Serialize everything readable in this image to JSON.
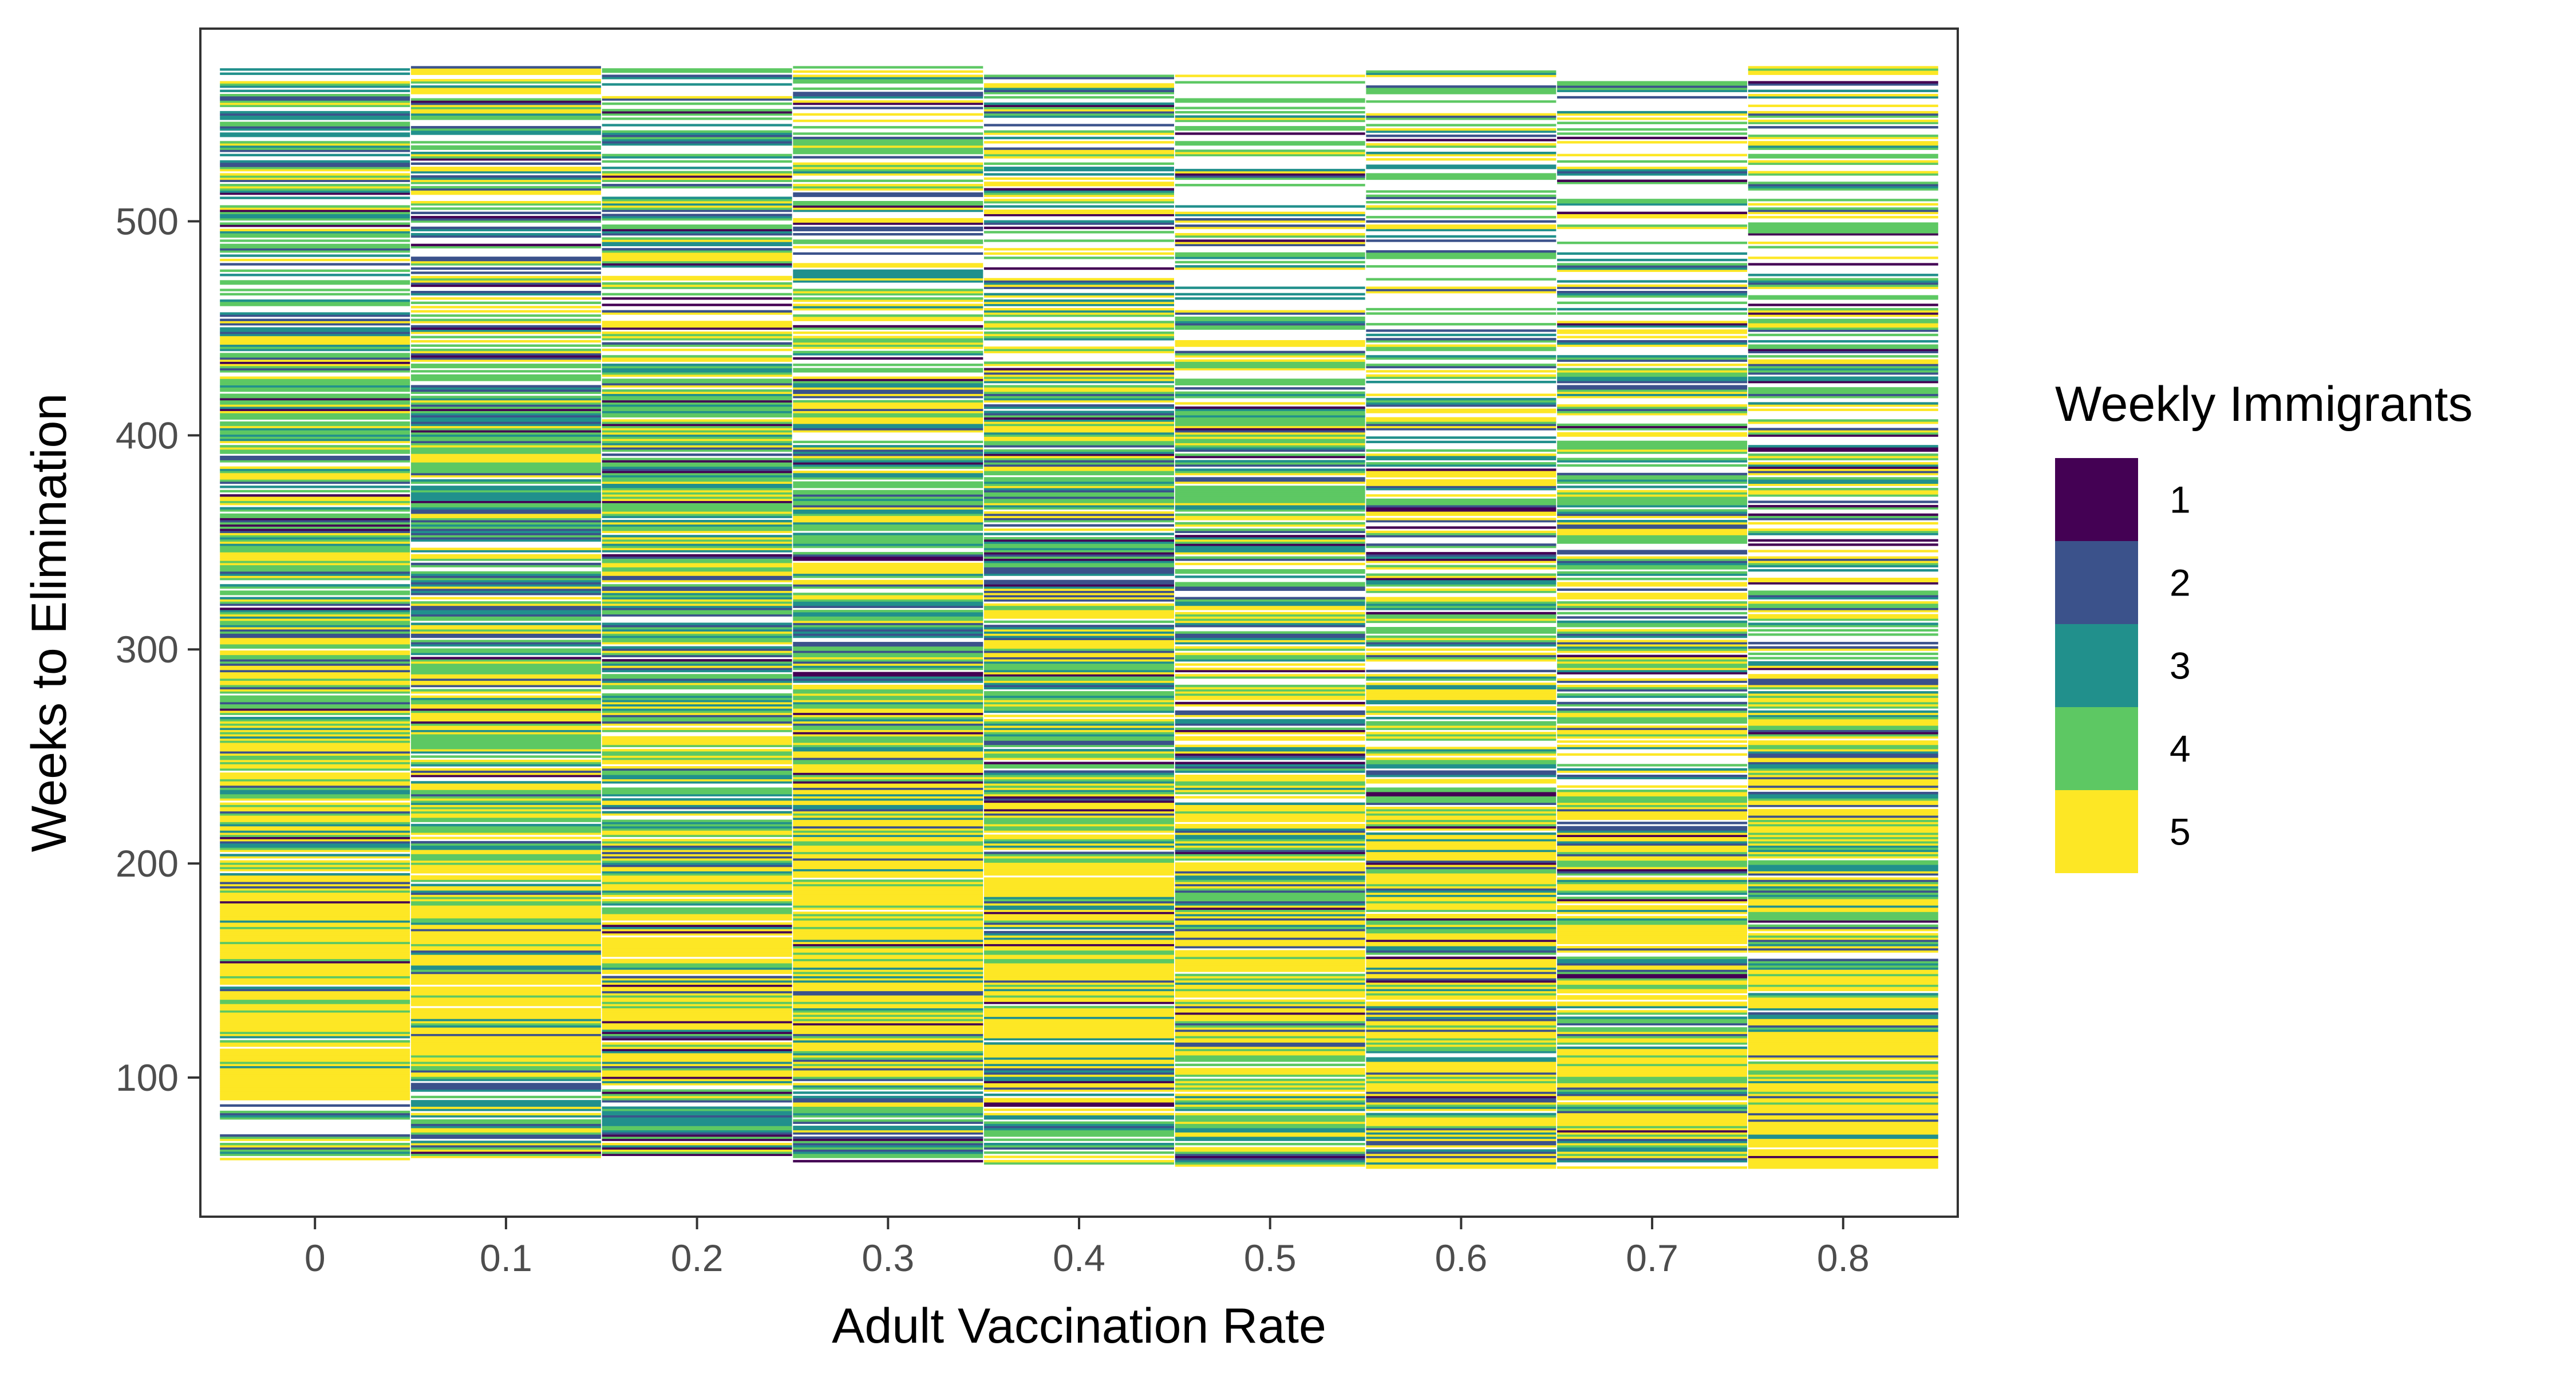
{
  "chart_data": {
    "type": "heatmap",
    "title": "",
    "xlabel": "Adult Vaccination Rate",
    "ylabel": "Weeks to Elimination",
    "x_categories": [
      "0",
      "0.1",
      "0.2",
      "0.3",
      "0.4",
      "0.5",
      "0.6",
      "0.7",
      "0.8"
    ],
    "y_ticks": [
      100,
      200,
      300,
      400,
      500
    ],
    "ylim": [
      35,
      590
    ],
    "y_data_range": [
      58,
      572
    ],
    "grid": false,
    "legend": {
      "title": "Weekly Immigrants",
      "position": "right",
      "levels": [
        {
          "label": "1",
          "value": 1,
          "color": "#440154"
        },
        {
          "label": "2",
          "value": 2,
          "color": "#3B528B"
        },
        {
          "label": "3",
          "value": 3,
          "color": "#21908C"
        },
        {
          "label": "4",
          "value": 4,
          "color": "#5DC863"
        },
        {
          "label": "5",
          "value": 5,
          "color": "#FDE725"
        }
      ]
    },
    "columns": [
      {
        "x": "0",
        "min_week": 62,
        "max_week": 572,
        "profile": [
          {
            "from": 62,
            "to": 90,
            "mix": [
              0.05,
              0.15,
              0.15,
              0.35,
              0.3
            ],
            "density": 0.55
          },
          {
            "from": 90,
            "to": 200,
            "mix": [
              0.02,
              0.05,
              0.08,
              0.15,
              0.7
            ],
            "density": 0.97
          },
          {
            "from": 200,
            "to": 300,
            "mix": [
              0.03,
              0.08,
              0.12,
              0.22,
              0.55
            ],
            "density": 0.95
          },
          {
            "from": 300,
            "to": 440,
            "mix": [
              0.04,
              0.12,
              0.16,
              0.38,
              0.3
            ],
            "density": 0.85
          },
          {
            "from": 440,
            "to": 572,
            "mix": [
              0.06,
              0.18,
              0.22,
              0.34,
              0.2
            ],
            "density": 0.7
          }
        ]
      },
      {
        "x": "0.1",
        "min_week": 63,
        "max_week": 572,
        "profile": [
          {
            "from": 63,
            "to": 100,
            "mix": [
              0.1,
              0.2,
              0.25,
              0.3,
              0.15
            ],
            "density": 0.8
          },
          {
            "from": 100,
            "to": 200,
            "mix": [
              0.03,
              0.08,
              0.1,
              0.14,
              0.65
            ],
            "density": 0.96
          },
          {
            "from": 200,
            "to": 300,
            "mix": [
              0.05,
              0.12,
              0.15,
              0.3,
              0.38
            ],
            "density": 0.9
          },
          {
            "from": 300,
            "to": 440,
            "mix": [
              0.05,
              0.15,
              0.2,
              0.4,
              0.2
            ],
            "density": 0.82
          },
          {
            "from": 440,
            "to": 572,
            "mix": [
              0.07,
              0.18,
              0.2,
              0.3,
              0.25
            ],
            "density": 0.68
          }
        ]
      },
      {
        "x": "0.2",
        "min_week": 64,
        "max_week": 572,
        "profile": [
          {
            "from": 64,
            "to": 100,
            "mix": [
              0.1,
              0.15,
              0.25,
              0.3,
              0.2
            ],
            "density": 0.8
          },
          {
            "from": 100,
            "to": 200,
            "mix": [
              0.04,
              0.08,
              0.1,
              0.18,
              0.6
            ],
            "density": 0.95
          },
          {
            "from": 200,
            "to": 300,
            "mix": [
              0.05,
              0.12,
              0.18,
              0.3,
              0.35
            ],
            "density": 0.88
          },
          {
            "from": 300,
            "to": 440,
            "mix": [
              0.04,
              0.12,
              0.2,
              0.4,
              0.24
            ],
            "density": 0.82
          },
          {
            "from": 440,
            "to": 572,
            "mix": [
              0.07,
              0.18,
              0.2,
              0.3,
              0.25
            ],
            "density": 0.65
          }
        ]
      },
      {
        "x": "0.3",
        "min_week": 60,
        "max_week": 572,
        "profile": [
          {
            "from": 60,
            "to": 100,
            "mix": [
              0.08,
              0.2,
              0.22,
              0.3,
              0.2
            ],
            "density": 0.85
          },
          {
            "from": 100,
            "to": 200,
            "mix": [
              0.02,
              0.05,
              0.07,
              0.1,
              0.76
            ],
            "density": 0.97
          },
          {
            "from": 200,
            "to": 300,
            "mix": [
              0.04,
              0.1,
              0.14,
              0.27,
              0.45
            ],
            "density": 0.92
          },
          {
            "from": 300,
            "to": 440,
            "mix": [
              0.04,
              0.12,
              0.18,
              0.4,
              0.26
            ],
            "density": 0.84
          },
          {
            "from": 440,
            "to": 572,
            "mix": [
              0.05,
              0.12,
              0.2,
              0.35,
              0.28
            ],
            "density": 0.62
          }
        ]
      },
      {
        "x": "0.4",
        "min_week": 60,
        "max_week": 570,
        "profile": [
          {
            "from": 60,
            "to": 100,
            "mix": [
              0.1,
              0.15,
              0.2,
              0.35,
              0.2
            ],
            "density": 0.85
          },
          {
            "from": 100,
            "to": 200,
            "mix": [
              0.02,
              0.05,
              0.08,
              0.12,
              0.73
            ],
            "density": 0.96
          },
          {
            "from": 200,
            "to": 300,
            "mix": [
              0.04,
              0.1,
              0.15,
              0.28,
              0.43
            ],
            "density": 0.9
          },
          {
            "from": 300,
            "to": 440,
            "mix": [
              0.05,
              0.15,
              0.2,
              0.35,
              0.25
            ],
            "density": 0.84
          },
          {
            "from": 440,
            "to": 572,
            "mix": [
              0.04,
              0.1,
              0.18,
              0.4,
              0.28
            ],
            "density": 0.6
          }
        ]
      },
      {
        "x": "0.5",
        "min_week": 58,
        "max_week": 568,
        "profile": [
          {
            "from": 58,
            "to": 125,
            "mix": [
              0.05,
              0.1,
              0.15,
              0.25,
              0.45
            ],
            "density": 0.9
          },
          {
            "from": 125,
            "to": 230,
            "mix": [
              0.03,
              0.08,
              0.12,
              0.2,
              0.57
            ],
            "density": 0.93
          },
          {
            "from": 230,
            "to": 300,
            "mix": [
              0.04,
              0.12,
              0.16,
              0.28,
              0.4
            ],
            "density": 0.78
          },
          {
            "from": 300,
            "to": 440,
            "mix": [
              0.05,
              0.15,
              0.2,
              0.35,
              0.25
            ],
            "density": 0.75
          },
          {
            "from": 440,
            "to": 572,
            "mix": [
              0.05,
              0.12,
              0.2,
              0.35,
              0.28
            ],
            "density": 0.45
          }
        ]
      },
      {
        "x": "0.6",
        "min_week": 58,
        "max_week": 570,
        "profile": [
          {
            "from": 58,
            "to": 125,
            "mix": [
              0.05,
              0.1,
              0.12,
              0.2,
              0.53
            ],
            "density": 0.92
          },
          {
            "from": 125,
            "to": 230,
            "mix": [
              0.05,
              0.1,
              0.12,
              0.2,
              0.53
            ],
            "density": 0.92
          },
          {
            "from": 230,
            "to": 300,
            "mix": [
              0.05,
              0.12,
              0.16,
              0.28,
              0.39
            ],
            "density": 0.75
          },
          {
            "from": 300,
            "to": 440,
            "mix": [
              0.05,
              0.14,
              0.2,
              0.36,
              0.25
            ],
            "density": 0.7
          },
          {
            "from": 440,
            "to": 572,
            "mix": [
              0.08,
              0.15,
              0.2,
              0.32,
              0.25
            ],
            "density": 0.45
          }
        ]
      },
      {
        "x": "0.7",
        "min_week": 58,
        "max_week": 566,
        "profile": [
          {
            "from": 58,
            "to": 125,
            "mix": [
              0.03,
              0.08,
              0.12,
              0.25,
              0.52
            ],
            "density": 0.92
          },
          {
            "from": 125,
            "to": 230,
            "mix": [
              0.04,
              0.1,
              0.12,
              0.2,
              0.54
            ],
            "density": 0.88
          },
          {
            "from": 230,
            "to": 300,
            "mix": [
              0.05,
              0.12,
              0.16,
              0.3,
              0.37
            ],
            "density": 0.78
          },
          {
            "from": 300,
            "to": 440,
            "mix": [
              0.05,
              0.14,
              0.22,
              0.36,
              0.23
            ],
            "density": 0.72
          },
          {
            "from": 440,
            "to": 572,
            "mix": [
              0.08,
              0.15,
              0.2,
              0.32,
              0.25
            ],
            "density": 0.5
          }
        ]
      },
      {
        "x": "0.8",
        "min_week": 58,
        "max_week": 572,
        "profile": [
          {
            "from": 58,
            "to": 140,
            "mix": [
              0.03,
              0.1,
              0.12,
              0.15,
              0.6
            ],
            "density": 0.95
          },
          {
            "from": 140,
            "to": 230,
            "mix": [
              0.04,
              0.1,
              0.14,
              0.27,
              0.45
            ],
            "density": 0.88
          },
          {
            "from": 230,
            "to": 280,
            "mix": [
              0.05,
              0.12,
              0.13,
              0.2,
              0.5
            ],
            "density": 0.92
          },
          {
            "from": 280,
            "to": 440,
            "mix": [
              0.06,
              0.15,
              0.2,
              0.34,
              0.25
            ],
            "density": 0.65
          },
          {
            "from": 440,
            "to": 572,
            "mix": [
              0.06,
              0.15,
              0.22,
              0.32,
              0.25
            ],
            "density": 0.55
          }
        ]
      }
    ]
  }
}
